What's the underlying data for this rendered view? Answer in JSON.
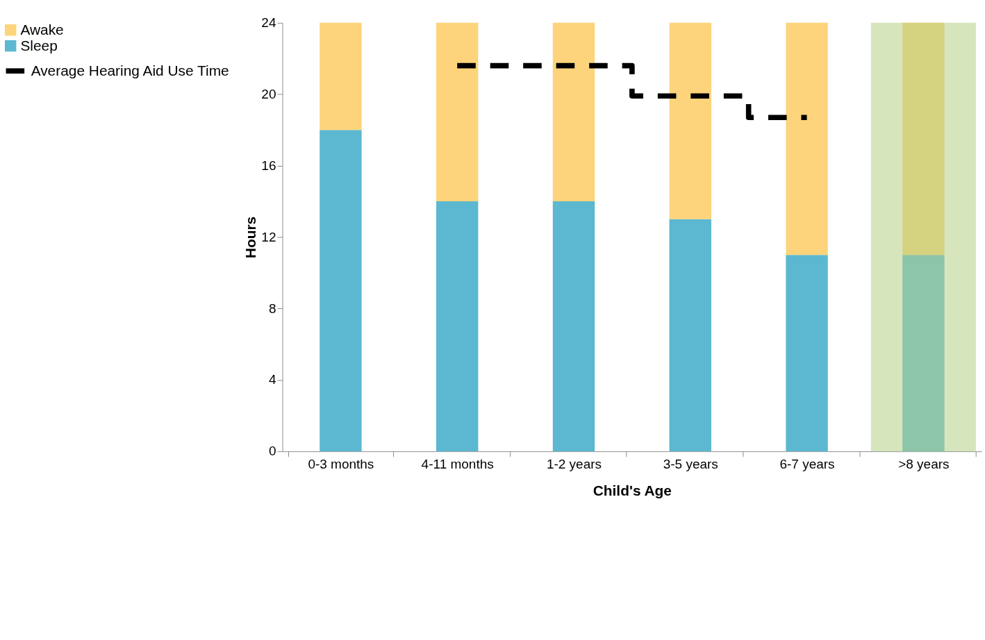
{
  "chart_data": {
    "type": "bar",
    "stacked": true,
    "xlabel": "Child's Age",
    "ylabel": "Hours",
    "categories": [
      "0-3 months",
      "4-11 months",
      "1-2 years",
      "3-5 years",
      "6-7 years",
      ">8 years"
    ],
    "series": [
      {
        "name": "Sleep",
        "color": "#5bb8d0",
        "values": [
          18,
          14,
          14,
          13,
          11,
          11
        ]
      },
      {
        "name": "Awake",
        "color": "#fdd47b",
        "values": [
          6,
          10,
          10,
          11,
          13,
          13
        ]
      },
      {
        "name": "Average Hearing Aid Use Time",
        "type": "step",
        "color": "#000000",
        "line_style": "dashed",
        "values": [
          null,
          21.6,
          21.6,
          19.9,
          18.7,
          null
        ]
      }
    ],
    "bands": [
      {
        "axis": "x",
        "from": ">8 years",
        "to": ">8 years",
        "color": "#b5cf85"
      }
    ],
    "ylim": [
      0,
      24
    ],
    "yticks": [
      0,
      4,
      8,
      12,
      16,
      20,
      24
    ],
    "grid": false,
    "legend": "left"
  }
}
